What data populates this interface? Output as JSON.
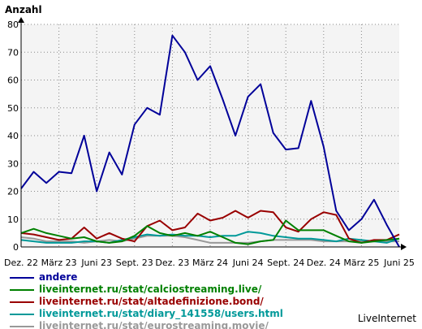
{
  "brand": "LiveInternet",
  "chart_data": {
    "type": "line",
    "ylabel": "Anzahl",
    "ylim": [
      0,
      80
    ],
    "yticks": [
      0,
      10,
      20,
      30,
      40,
      50,
      60,
      70,
      80
    ],
    "xticks": [
      "Dez. 22",
      "März 23",
      "Juni 23",
      "Sept. 23",
      "Dez. 23",
      "März 24",
      "Juni 24",
      "Sept. 24",
      "Dez. 24",
      "März 25",
      "Juni 25"
    ],
    "grid": true,
    "legend": "bottom",
    "series": [
      {
        "name": "andere",
        "color": "#000099",
        "values": [
          21,
          27,
          23,
          27,
          26.5,
          40,
          20,
          34,
          26,
          44,
          50,
          47.5,
          76,
          70,
          60,
          65,
          53,
          40,
          54,
          58.5,
          41,
          35,
          35.5,
          52.5,
          36,
          13,
          6,
          10,
          17,
          8,
          0
        ]
      },
      {
        "name": "liveinternet.ru/stat/calciostreaming.live/",
        "color": "#008000",
        "values": [
          5,
          6.5,
          5,
          4,
          3,
          3.5,
          2,
          1.5,
          2,
          4,
          7.5,
          5,
          4,
          5,
          4,
          5.5,
          3.5,
          1.5,
          1,
          2,
          2.5,
          9.5,
          6,
          6,
          6,
          4,
          2,
          1.5,
          2,
          2.5,
          3
        ]
      },
      {
        "name": "liveinternet.ru/stat/altadefinizione.bond/",
        "color": "#990000",
        "values": [
          5,
          4.5,
          3.5,
          2.5,
          3,
          7,
          3,
          5,
          3,
          2,
          7.5,
          9.5,
          6,
          7,
          12,
          9.5,
          10.5,
          13,
          10.5,
          13,
          12.5,
          7,
          5.5,
          10,
          12.5,
          11.5,
          3,
          1.5,
          2.5,
          2.5,
          4.5
        ]
      },
      {
        "name": "liveinternet.ru/stat/diary_141558/users.html",
        "color": "#009999",
        "values": [
          2.5,
          2,
          1.5,
          1.5,
          1.5,
          2,
          2,
          1.5,
          2.5,
          3.5,
          4.5,
          4,
          4.5,
          4,
          4,
          3.5,
          4,
          4,
          5.5,
          5,
          4,
          3.5,
          3,
          3,
          2.5,
          2,
          3,
          2.5,
          2,
          1.5,
          3
        ]
      },
      {
        "name": "liveinternet.ru/stat/eurostreaming.movie/",
        "color": "#999999",
        "values": [
          3.5,
          3,
          2,
          2,
          2,
          1.5,
          2,
          2.5,
          2,
          3,
          4,
          4,
          4,
          3.5,
          2.5,
          1.5,
          1.5,
          1.5,
          1.5,
          2,
          2.5,
          2.5,
          2.5,
          2.5,
          2,
          2,
          2,
          2,
          2,
          2,
          2
        ]
      }
    ]
  }
}
